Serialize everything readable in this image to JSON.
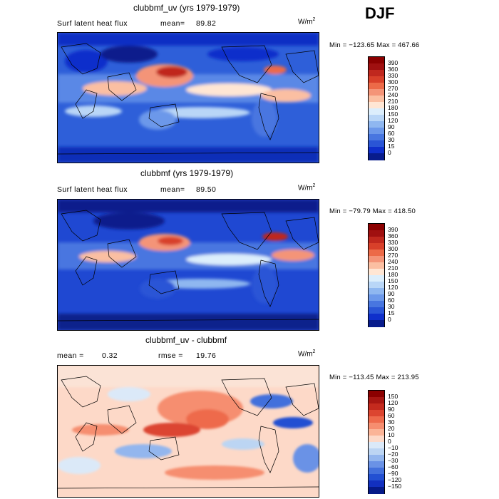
{
  "season": "DJF",
  "panels": [
    {
      "id": "p1",
      "title": "clubbmf_uv (yrs 1979-1979)",
      "left_label": "Surf latent heat flux",
      "stat1_label": "mean=",
      "stat1_value": "89.82",
      "units_base": "W/m",
      "units_exp": "2",
      "minmax": "Min = −123.65 Max = 467.66",
      "colorbar_labels": [
        "390",
        "360",
        "330",
        "300",
        "270",
        "240",
        "210",
        "180",
        "150",
        "120",
        "90",
        "60",
        "30",
        "15",
        "0"
      ],
      "colors": [
        "#8b0000",
        "#a01010",
        "#c0281e",
        "#d8402a",
        "#ec6a48",
        "#f49478",
        "#fbbfa2",
        "#ffe6d4",
        "#dceefc",
        "#b9d6f7",
        "#8fb7f0",
        "#6c98ea",
        "#4876e0",
        "#2a55d6",
        "#0f2fcb",
        "#081c8c"
      ]
    },
    {
      "id": "p2",
      "title": "clubbmf (yrs 1979-1979)",
      "left_label": "Surf latent heat flux",
      "stat1_label": "mean=",
      "stat1_value": "89.50",
      "units_base": "W/m",
      "units_exp": "2",
      "minmax": "Min = −79.79 Max = 418.50",
      "colorbar_labels": [
        "390",
        "360",
        "330",
        "300",
        "270",
        "240",
        "210",
        "180",
        "150",
        "120",
        "90",
        "60",
        "30",
        "15",
        "0"
      ],
      "colors": [
        "#8b0000",
        "#a01010",
        "#c0281e",
        "#d8402a",
        "#ec6a48",
        "#f49478",
        "#fbbfa2",
        "#ffe6d4",
        "#dceefc",
        "#b9d6f7",
        "#8fb7f0",
        "#6c98ea",
        "#4876e0",
        "#2a55d6",
        "#0f2fcb",
        "#081c8c"
      ]
    },
    {
      "id": "p3",
      "title": "clubbmf_uv - clubbmf",
      "left_label": "mean =",
      "left_value": "0.32",
      "stat1_label": "rmse =",
      "stat1_value": "19.76",
      "units_base": "W/m",
      "units_exp": "2",
      "minmax": "Min = −113.45 Max = 213.95",
      "colorbar_labels": [
        "150",
        "120",
        "90",
        "60",
        "30",
        "20",
        "10",
        "0",
        "−10",
        "−20",
        "−30",
        "−60",
        "−90",
        "−120",
        "−150"
      ],
      "colors": [
        "#8b0000",
        "#a81612",
        "#c42a1e",
        "#dc4530",
        "#ee6a4c",
        "#f68e70",
        "#fbb497",
        "#fdd9c8",
        "#dbe9f8",
        "#bcd5f3",
        "#93b6ee",
        "#6a92e6",
        "#4370dc",
        "#2350d2",
        "#1230c0",
        "#061a88"
      ]
    }
  ]
}
